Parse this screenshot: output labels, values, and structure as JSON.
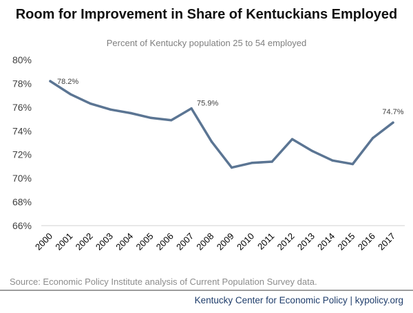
{
  "chart_data": {
    "type": "line",
    "title": "Room for Improvement in Share of Kentuckians Employed",
    "subtitle": "Percent of Kentucky population 25 to 54 employed",
    "xlabel": "",
    "ylabel": "",
    "x": [
      "2000",
      "2001",
      "2002",
      "2003",
      "2004",
      "2005",
      "2006",
      "2007",
      "2008",
      "2009",
      "2010",
      "2011",
      "2012",
      "2013",
      "2014",
      "2015",
      "2016",
      "2017"
    ],
    "series": [
      {
        "values": [
          78.2,
          77.1,
          76.3,
          75.8,
          75.5,
          75.1,
          74.9,
          75.9,
          73.1,
          70.9,
          71.3,
          71.4,
          73.3,
          72.3,
          71.5,
          71.2,
          73.4,
          74.7
        ],
        "color": "#5b7593"
      }
    ],
    "ylim": [
      66,
      80
    ],
    "yticks": [
      "66%",
      "68%",
      "70%",
      "72%",
      "74%",
      "76%",
      "78%",
      "80%"
    ],
    "data_labels": [
      {
        "index": 0,
        "text": "78.2%"
      },
      {
        "index": 7,
        "text": "75.9%"
      },
      {
        "index": 17,
        "text": "74.7%"
      }
    ],
    "grid": false,
    "legend": "none"
  },
  "source": "Source: Economic Policy Institute analysis of Current Population Survey data.",
  "footer": "Kentucky Center for Economic Policy | kypolicy.org"
}
